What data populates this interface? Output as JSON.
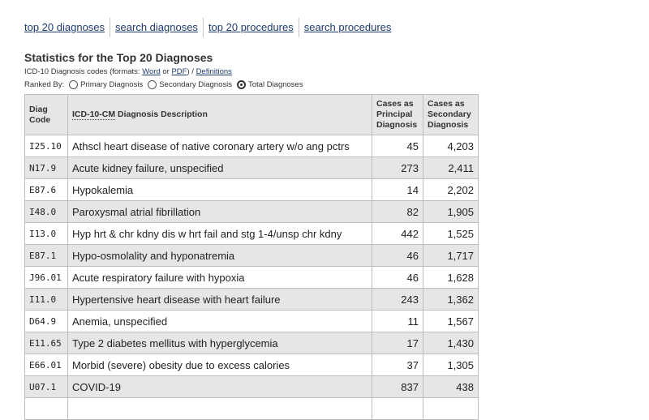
{
  "nav": {
    "links": [
      "top 20 diagnoses",
      "search diagnoses",
      "top 20 procedures",
      "search procedures"
    ]
  },
  "heading": {
    "title": "Statistics for the Top 20 Diagnoses",
    "formats_prefix": "ICD-10 Diagnosis codes (formats:",
    "word": "Word",
    "or": "or",
    "pdf": "PDF",
    "slash": ") /",
    "definitions": "Definitions"
  },
  "ranked": {
    "label": "Ranked By:",
    "options": [
      "Primary Diagnosis",
      "Secondary Diagnosis",
      "Total Diagnoses"
    ],
    "selected_index": 2
  },
  "table": {
    "headers": {
      "code": "Diag Code",
      "desc_abbr": "ICD-10-CM",
      "desc_rest": "Diagnosis Description",
      "principal": "Cases as Principal Diagnosis",
      "secondary": "Cases as Secondary Diagnosis"
    },
    "rows": [
      {
        "code": "I25.10",
        "desc": "Athscl heart disease of native coronary artery w/o ang pctrs",
        "principal": "45",
        "secondary": "4,203"
      },
      {
        "code": "N17.9",
        "desc": "Acute kidney failure, unspecified",
        "principal": "273",
        "secondary": "2,411"
      },
      {
        "code": "E87.6",
        "desc": "Hypokalemia",
        "principal": "14",
        "secondary": "2,202"
      },
      {
        "code": "I48.0",
        "desc": "Paroxysmal atrial fibrillation",
        "principal": "82",
        "secondary": "1,905"
      },
      {
        "code": "I13.0",
        "desc": "Hyp hrt & chr kdny dis w hrt fail and stg 1-4/unsp chr kdny",
        "principal": "442",
        "secondary": "1,525"
      },
      {
        "code": "E87.1",
        "desc": "Hypo-osmolality and hyponatremia",
        "principal": "46",
        "secondary": "1,717"
      },
      {
        "code": "J96.01",
        "desc": "Acute respiratory failure with hypoxia",
        "principal": "46",
        "secondary": "1,628"
      },
      {
        "code": "I11.0",
        "desc": "Hypertensive heart disease with heart failure",
        "principal": "243",
        "secondary": "1,362"
      },
      {
        "code": "D64.9",
        "desc": "Anemia, unspecified",
        "principal": "11",
        "secondary": "1,567"
      },
      {
        "code": "E11.65",
        "desc": "Type 2 diabetes mellitus with hyperglycemia",
        "principal": "17",
        "secondary": "1,430"
      },
      {
        "code": "E66.01",
        "desc": "Morbid (severe) obesity due to excess calories",
        "principal": "37",
        "secondary": "1,305"
      },
      {
        "code": "U07.1",
        "desc": "COVID-19",
        "principal": "837",
        "secondary": "438"
      },
      {
        "code": "",
        "desc": "",
        "principal": "",
        "secondary": ""
      }
    ]
  }
}
